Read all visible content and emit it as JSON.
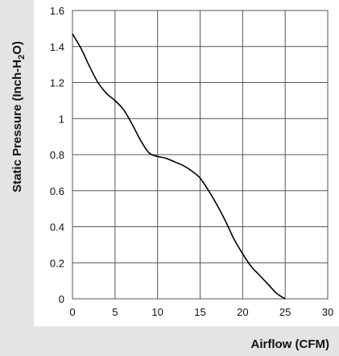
{
  "chart_data": {
    "type": "line",
    "title": "",
    "xlabel": "Airflow (CFM)",
    "ylabel": {
      "main": "Static Pressure (Inch-H",
      "sub": "2",
      "tail": "O)"
    },
    "xlim": [
      0,
      30
    ],
    "ylim": [
      0,
      1.6
    ],
    "xticks": [
      "0",
      "5",
      "10",
      "15",
      "20",
      "25",
      "30"
    ],
    "yticks": [
      "0",
      "0.2",
      "0.4",
      "0.6",
      "0.8",
      "1",
      "1.2",
      "1.4",
      "1.6"
    ],
    "grid": true,
    "series": [
      {
        "x": [
          0,
          1,
          2,
          3,
          4,
          5,
          6,
          7,
          8,
          9,
          10,
          11,
          12,
          13,
          14,
          15,
          16,
          17,
          18,
          19,
          20,
          21,
          22,
          23,
          24,
          25
        ],
        "y": [
          1.47,
          1.39,
          1.29,
          1.2,
          1.14,
          1.1,
          1.05,
          0.97,
          0.88,
          0.81,
          0.79,
          0.78,
          0.76,
          0.74,
          0.71,
          0.67,
          0.6,
          0.52,
          0.43,
          0.33,
          0.25,
          0.18,
          0.13,
          0.08,
          0.03,
          0.0
        ],
        "color": "#000000"
      }
    ]
  }
}
